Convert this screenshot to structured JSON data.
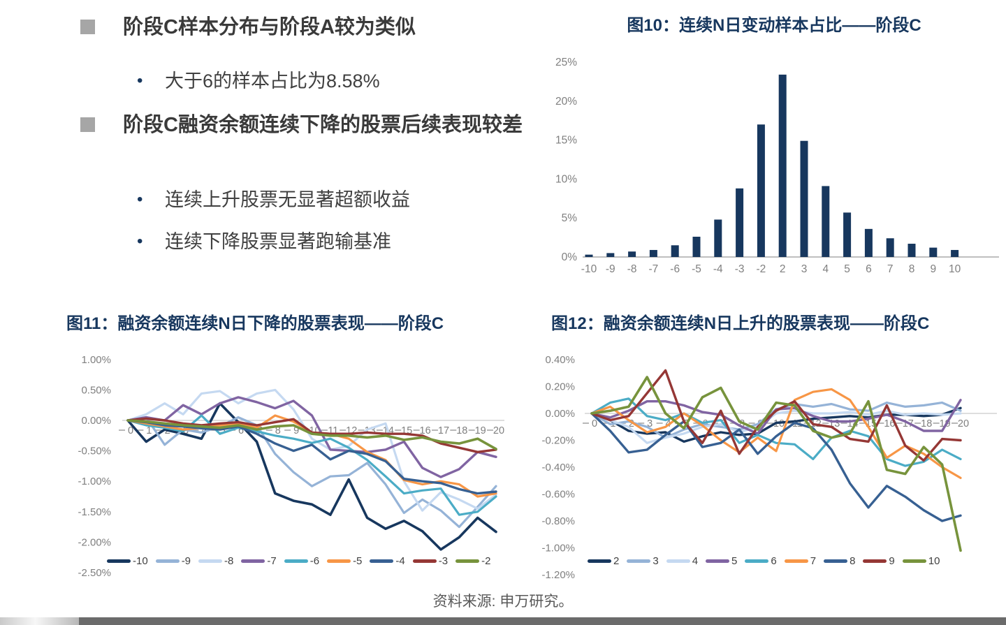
{
  "bullets": {
    "heading1": "阶段C样本分布与阶段A较为类似",
    "sub1": "大于6的样本占比为8.58%",
    "heading2": "阶段C融资余额连续下降的股票后续表现较差",
    "sub2": "连续上升股票无显著超额收益",
    "sub3": "连续下降股票显著跑输基准"
  },
  "source_note": "资料来源: 申万研究。",
  "colors": {
    "title_navy": "#17375e",
    "bar": "#17375e",
    "axis_label": "#7f7f7f",
    "gridline": "#c9c9c9",
    "bullet_square": "#a6a6a6"
  },
  "chart_data": [
    {
      "type": "bar",
      "title": "图10：连续N日变动样本占比——阶段C",
      "categories": [
        "-10",
        "-9",
        "-8",
        "-7",
        "-6",
        "-5",
        "-4",
        "-3",
        "-2",
        "2",
        "3",
        "4",
        "5",
        "6",
        "7",
        "8",
        "9",
        "10"
      ],
      "values": [
        0.3,
        0.5,
        0.7,
        0.9,
        1.5,
        2.6,
        4.8,
        8.8,
        17.0,
        23.4,
        14.9,
        9.1,
        5.7,
        3.6,
        2.4,
        1.7,
        1.2,
        0.9
      ],
      "yticks": [
        "25%",
        "20%",
        "15%",
        "10%",
        "5%",
        "0%"
      ],
      "ylim": [
        0,
        25
      ],
      "bar_color": "#17375e",
      "grid": false,
      "legend_position": "none"
    },
    {
      "type": "line",
      "title": "图11：融资余额连续N日下降的股票表现——阶段C",
      "x_labels": [
        "0",
        "1",
        "2",
        "3",
        "4",
        "5",
        "6",
        "7",
        "8",
        "9",
        "10",
        "11",
        "12",
        "13",
        "14",
        "15",
        "16",
        "17",
        "18",
        "19",
        "20"
      ],
      "yticks": [
        "1.00%",
        "0.50%",
        "0.00%",
        "-0.50%",
        "-1.00%",
        "-1.50%",
        "-2.00%",
        "-2.50%"
      ],
      "ylim": [
        -2.5,
        1.0
      ],
      "grid": false,
      "legend_position": "bottom",
      "series": [
        {
          "name": "-10",
          "color": "#17375e",
          "width": 3.6,
          "values": [
            0,
            -0.35,
            -0.15,
            -0.22,
            -0.3,
            0.28,
            -0.03,
            -0.35,
            -1.2,
            -1.32,
            -1.38,
            -1.55,
            -0.97,
            -1.6,
            -1.78,
            -1.65,
            -1.82,
            -2.12,
            -1.92,
            -1.6,
            -1.83
          ]
        },
        {
          "name": "-9",
          "color": "#95b3d7",
          "width": 3.2,
          "values": [
            0,
            0.05,
            -0.4,
            -0.15,
            -0.2,
            -0.1,
            0.05,
            -0.08,
            -0.55,
            -0.85,
            -1.08,
            -0.92,
            -0.9,
            -0.7,
            -1.05,
            -1.52,
            -1.3,
            -1.48,
            -1.75,
            -1.42,
            -1.08
          ]
        },
        {
          "name": "-8",
          "color": "#c5d9f1",
          "width": 3.2,
          "values": [
            0,
            0.1,
            0.28,
            0.1,
            0.44,
            0.48,
            0.28,
            0.44,
            0.5,
            0.18,
            -0.3,
            -0.48,
            -0.42,
            -0.15,
            -0.05,
            -1.0,
            -1.48,
            -1.18,
            -1.3,
            -1.45,
            -1.22
          ]
        },
        {
          "name": "-7",
          "color": "#8064a2",
          "width": 3.4,
          "values": [
            0,
            0.05,
            0.0,
            0.25,
            0.1,
            0.28,
            0.38,
            0.3,
            0.2,
            0.32,
            0.08,
            -0.48,
            -0.5,
            -0.52,
            -0.48,
            -0.35,
            -0.78,
            -0.93,
            -0.8,
            -0.52,
            -0.6
          ]
        },
        {
          "name": "-6",
          "color": "#4bacc6",
          "width": 3.2,
          "values": [
            0,
            -0.08,
            -0.12,
            -0.18,
            0.08,
            -0.22,
            -0.12,
            -0.18,
            -0.25,
            -0.3,
            -0.37,
            -0.3,
            -0.45,
            -0.65,
            -0.92,
            -1.2,
            -1.15,
            -1.12,
            -1.55,
            -1.5,
            -1.25
          ]
        },
        {
          "name": "-5",
          "color": "#f79646",
          "width": 3.2,
          "values": [
            0,
            -0.05,
            -0.1,
            -0.15,
            -0.12,
            -0.08,
            -0.05,
            -0.12,
            0.08,
            -0.02,
            -0.2,
            -0.22,
            -0.3,
            -0.52,
            -0.65,
            -0.98,
            -1.05,
            -1.0,
            -1.05,
            -1.25,
            -1.2
          ]
        },
        {
          "name": "-4",
          "color": "#376092",
          "width": 3.4,
          "values": [
            0,
            -0.03,
            -0.08,
            -0.1,
            -0.13,
            -0.15,
            -0.1,
            -0.22,
            -0.38,
            -0.5,
            -0.4,
            -0.64,
            -0.5,
            -0.55,
            -0.67,
            -0.96,
            -1.0,
            -1.03,
            -1.13,
            -1.2,
            -1.17
          ]
        },
        {
          "name": "-3",
          "color": "#953735",
          "width": 3.4,
          "values": [
            0,
            0.03,
            0.0,
            -0.05,
            -0.08,
            -0.05,
            -0.03,
            -0.08,
            -0.03,
            0.02,
            -0.2,
            -0.22,
            -0.22,
            -0.2,
            -0.22,
            -0.22,
            -0.25,
            -0.38,
            -0.45,
            -0.52,
            -0.48
          ]
        },
        {
          "name": "-2",
          "color": "#77933c",
          "width": 3.6,
          "values": [
            0,
            -0.02,
            -0.05,
            -0.08,
            -0.1,
            -0.12,
            -0.08,
            -0.15,
            -0.1,
            -0.08,
            -0.22,
            -0.25,
            -0.25,
            -0.28,
            -0.25,
            -0.32,
            -0.28,
            -0.35,
            -0.38,
            -0.3,
            -0.47
          ]
        }
      ]
    },
    {
      "type": "line",
      "title": "图12：融资余额连续N日上升的股票表现——阶段C",
      "x_labels": [
        "0",
        "1",
        "2",
        "3",
        "4",
        "5",
        "6",
        "7",
        "8",
        "9",
        "10",
        "11",
        "12",
        "13",
        "14",
        "15",
        "16",
        "17",
        "18",
        "19",
        "20"
      ],
      "yticks": [
        "0.40%",
        "0.20%",
        "0.00%",
        "-0.20%",
        "-0.40%",
        "-0.60%",
        "-0.80%",
        "-1.00%",
        "-1.20%"
      ],
      "ylim": [
        -1.2,
        0.4
      ],
      "grid": false,
      "legend_position": "bottom",
      "series": [
        {
          "name": "2",
          "color": "#17375e",
          "width": 3.4,
          "values": [
            0,
            -0.05,
            -0.13,
            -0.15,
            -0.14,
            -0.21,
            -0.17,
            -0.14,
            -0.16,
            -0.15,
            -0.07,
            -0.06,
            -0.04,
            -0.03,
            -0.02,
            -0.03,
            -0.01,
            -0.01,
            -0.02,
            -0.01,
            0.04
          ]
        },
        {
          "name": "3",
          "color": "#95b3d7",
          "width": 3.2,
          "values": [
            0,
            -0.08,
            -0.06,
            -0.1,
            -0.18,
            -0.12,
            -0.08,
            -0.1,
            -0.12,
            -0.08,
            0.03,
            0.07,
            0.05,
            0.07,
            0.03,
            0.02,
            0.08,
            0.05,
            0.06,
            0.08,
            0.02
          ]
        },
        {
          "name": "4",
          "color": "#c5d9f1",
          "width": 3.2,
          "values": [
            0,
            -0.05,
            -0.1,
            -0.22,
            -0.18,
            -0.15,
            -0.1,
            -0.08,
            -0.14,
            -0.1,
            0.0,
            0.02,
            0.0,
            0.0,
            0.01,
            -0.01,
            0.02,
            -0.01,
            0.0,
            -0.01,
            0.0
          ]
        },
        {
          "name": "5",
          "color": "#8064a2",
          "width": 3.4,
          "values": [
            0,
            -0.03,
            0.02,
            0.09,
            0.09,
            0.06,
            0.01,
            -0.01,
            -0.09,
            -0.15,
            0.03,
            0.04,
            -0.02,
            -0.06,
            -0.06,
            -0.04,
            -0.01,
            -0.06,
            -0.13,
            -0.13,
            0.1
          ]
        },
        {
          "name": "6",
          "color": "#4bacc6",
          "width": 3.2,
          "values": [
            0,
            0.08,
            0.11,
            -0.02,
            -0.05,
            0.0,
            -0.07,
            -0.05,
            -0.22,
            -0.16,
            -0.22,
            -0.23,
            -0.34,
            -0.18,
            -0.13,
            -0.17,
            -0.34,
            -0.39,
            -0.36,
            -0.27,
            -0.34
          ]
        },
        {
          "name": "7",
          "color": "#f79646",
          "width": 3.2,
          "values": [
            0,
            0.05,
            -0.05,
            -0.14,
            -0.1,
            0.0,
            -0.09,
            -0.2,
            -0.29,
            -0.18,
            -0.28,
            0.1,
            0.16,
            0.18,
            0.1,
            -0.1,
            -0.33,
            -0.24,
            -0.3,
            -0.4,
            -0.48
          ]
        },
        {
          "name": "8",
          "color": "#376092",
          "width": 3.4,
          "values": [
            0,
            -0.13,
            -0.29,
            -0.27,
            -0.16,
            -0.06,
            -0.25,
            -0.22,
            -0.12,
            -0.3,
            -0.17,
            -0.07,
            -0.11,
            -0.27,
            -0.52,
            -0.7,
            -0.54,
            -0.62,
            -0.72,
            -0.8,
            -0.76
          ]
        },
        {
          "name": "9",
          "color": "#953735",
          "width": 3.4,
          "values": [
            0,
            -0.05,
            -0.02,
            0.15,
            0.32,
            -0.06,
            -0.22,
            0.02,
            -0.3,
            -0.1,
            0.02,
            0.09,
            -0.08,
            -0.1,
            -0.19,
            -0.21,
            0.06,
            -0.24,
            -0.35,
            -0.19,
            -0.2
          ]
        },
        {
          "name": "10",
          "color": "#77933c",
          "width": 3.6,
          "values": [
            0,
            0.02,
            0.05,
            0.27,
            0.0,
            -0.11,
            0.12,
            0.19,
            -0.06,
            -0.12,
            0.08,
            0.06,
            -0.13,
            -0.18,
            -0.15,
            0.09,
            -0.42,
            -0.45,
            -0.25,
            -0.38,
            -1.02
          ]
        }
      ]
    }
  ]
}
